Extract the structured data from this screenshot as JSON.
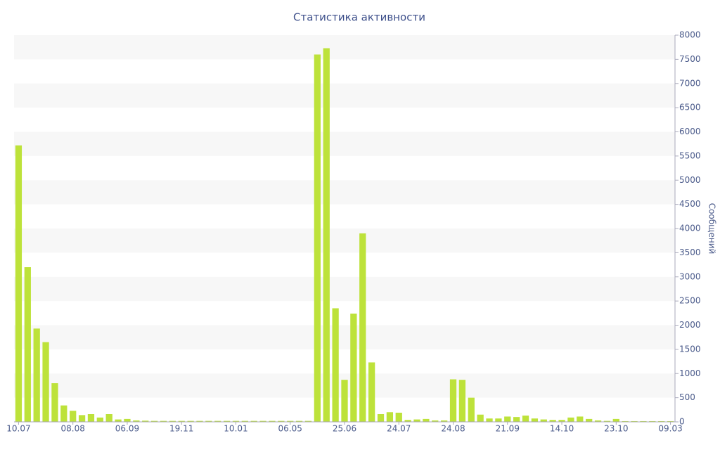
{
  "chart_data": {
    "type": "bar",
    "title": "Статистика активности",
    "y_label": "Сообщений",
    "categories": [
      "10.07",
      null,
      null,
      null,
      null,
      null,
      "08.08",
      null,
      null,
      null,
      null,
      null,
      "06.09",
      null,
      null,
      null,
      null,
      null,
      "19.11",
      null,
      null,
      null,
      null,
      null,
      "10.01",
      null,
      null,
      null,
      null,
      null,
      "06.05",
      null,
      null,
      null,
      null,
      null,
      "25.06",
      null,
      null,
      null,
      null,
      null,
      "24.07",
      null,
      null,
      null,
      null,
      null,
      "24.08",
      null,
      null,
      null,
      null,
      null,
      "21.09",
      null,
      null,
      null,
      null,
      null,
      "14.10",
      null,
      null,
      null,
      null,
      null,
      "23.10",
      null,
      null,
      null,
      null,
      null,
      "09.03"
    ],
    "values": [
      5720,
      3200,
      1930,
      1650,
      800,
      340,
      230,
      140,
      160,
      90,
      160,
      50,
      60,
      30,
      25,
      20,
      20,
      20,
      20,
      20,
      20,
      20,
      20,
      20,
      20,
      20,
      20,
      20,
      20,
      20,
      20,
      20,
      20,
      7600,
      7730,
      2350,
      870,
      2240,
      3900,
      1230,
      160,
      200,
      190,
      40,
      50,
      60,
      30,
      30,
      880,
      870,
      500,
      150,
      70,
      70,
      110,
      100,
      130,
      70,
      50,
      40,
      40,
      90,
      110,
      60,
      30,
      20,
      60,
      15,
      15,
      15,
      15,
      15,
      15
    ],
    "color": "#bde23a",
    "ylim": [
      0,
      8000
    ],
    "yticks": [
      0,
      500,
      1000,
      1500,
      2000,
      2500,
      3000,
      3500,
      4000,
      4500,
      5000,
      5500,
      6000,
      6500,
      7000,
      7500,
      8000
    ],
    "grid": true,
    "y_axis_side": "right"
  }
}
